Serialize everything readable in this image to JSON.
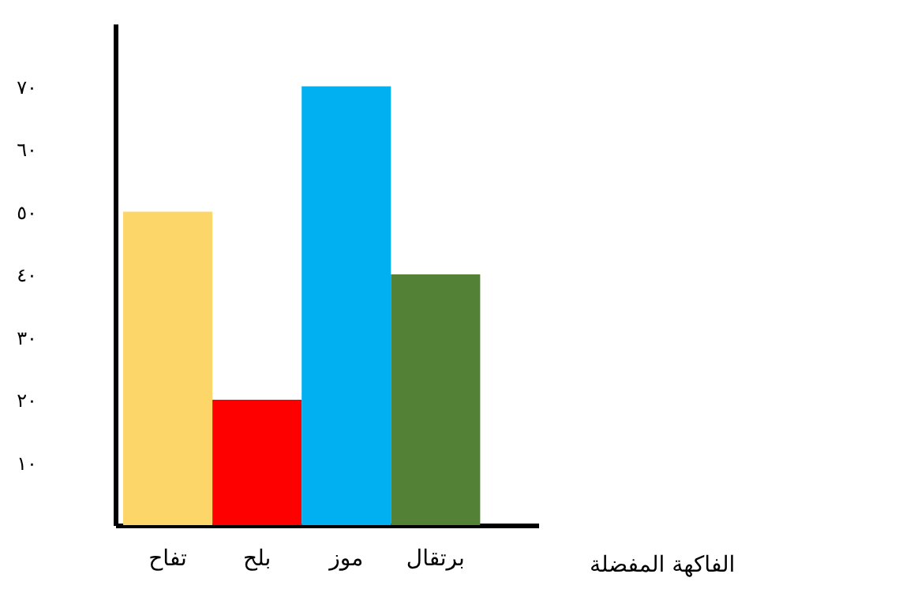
{
  "chart_data": {
    "type": "bar",
    "xlabel": "الفاكهة المفضلة",
    "categories": [
      "تفاح",
      "بلح",
      "موز",
      "برتقال"
    ],
    "values": [
      50,
      20,
      70,
      40
    ],
    "colors": [
      "#fdd66a",
      "#ff0000",
      "#00b0f0",
      "#538135"
    ],
    "ylim": [
      0,
      80
    ],
    "yticks": [
      {
        "value": 10,
        "label": "١٠"
      },
      {
        "value": 20,
        "label": "٢٠"
      },
      {
        "value": 30,
        "label": "٣٠"
      },
      {
        "value": 40,
        "label": "٤٠"
      },
      {
        "value": 50,
        "label": "٥٠"
      },
      {
        "value": 60,
        "label": "٦٠"
      },
      {
        "value": 70,
        "label": "٧٠"
      }
    ],
    "grid": false
  }
}
